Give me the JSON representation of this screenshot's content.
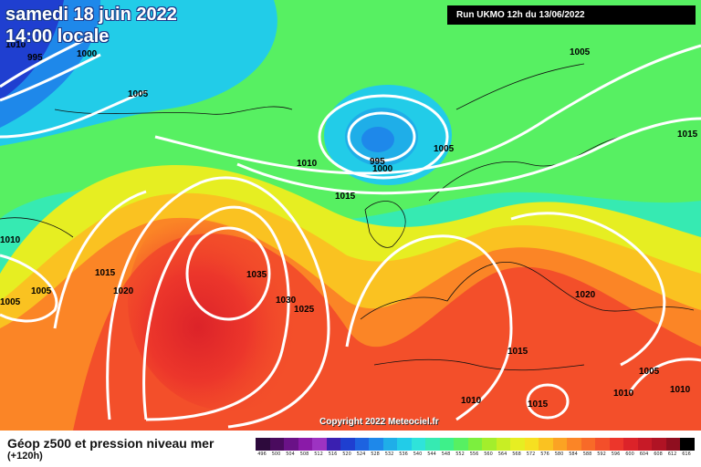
{
  "header": {
    "date": "samedi 18 juin 2022",
    "time": "14:00 locale",
    "run": "Run UKMO 12h du 13/06/2022"
  },
  "copyright": "Copyright 2022 Meteociel.fr",
  "legend": {
    "title": "Géop z500 et pression niveau mer",
    "subtitle": "(+120h)",
    "ticks": [
      "496",
      "500",
      "504",
      "508",
      "512",
      "516",
      "520",
      "524",
      "528",
      "532",
      "536",
      "540",
      "544",
      "548",
      "552",
      "556",
      "560",
      "564",
      "568",
      "572",
      "576",
      "580",
      "584",
      "588",
      "592",
      "596",
      "600",
      "604",
      "608",
      "612",
      "616"
    ],
    "colors": [
      "#2d0a3c",
      "#4a0b5e",
      "#6a1287",
      "#8a1aa8",
      "#9d33c2",
      "#3a1fb0",
      "#1f3fd0",
      "#1d63e0",
      "#1e88ea",
      "#1faee8",
      "#22cce8",
      "#2fe3da",
      "#36eab2",
      "#3ef08a",
      "#57f062",
      "#7cef3e",
      "#a3ee2c",
      "#c8ee24",
      "#e6ee22",
      "#f6e021",
      "#fac221",
      "#fba323",
      "#fb8526",
      "#f86a28",
      "#f34f2a",
      "#ec362b",
      "#dc2329",
      "#c71a27",
      "#b01324",
      "#8f0e1f",
      "#000000"
    ]
  },
  "isobars": [
    {
      "label": "995",
      "ref": "a"
    },
    {
      "label": "1000",
      "ref": "b"
    },
    {
      "label": "1005",
      "ref": "c"
    },
    {
      "label": "1010",
      "ref": "d"
    },
    {
      "label": "1015",
      "ref": "e"
    },
    {
      "label": "1005",
      "ref": "f"
    },
    {
      "label": "1010",
      "ref": "g"
    },
    {
      "label": "1015",
      "ref": "h"
    },
    {
      "label": "1005",
      "ref": "i"
    },
    {
      "label": "1005",
      "ref": "j"
    },
    {
      "label": "1020",
      "ref": "k"
    },
    {
      "label": "1035",
      "ref": "l"
    },
    {
      "label": "1030",
      "ref": "m"
    },
    {
      "label": "1025",
      "ref": "n"
    },
    {
      "label": "995",
      "ref": "o"
    },
    {
      "label": "1000",
      "ref": "p"
    },
    {
      "label": "1005",
      "ref": "q"
    },
    {
      "label": "1015",
      "ref": "r"
    },
    {
      "label": "1010",
      "ref": "s"
    },
    {
      "label": "1020",
      "ref": "t"
    },
    {
      "label": "1015",
      "ref": "u"
    },
    {
      "label": "1010",
      "ref": "v"
    },
    {
      "label": "1015",
      "ref": "w"
    },
    {
      "label": "1010",
      "ref": "x"
    },
    {
      "label": "1005",
      "ref": "y"
    },
    {
      "label": "1010",
      "ref": "z"
    }
  ]
}
